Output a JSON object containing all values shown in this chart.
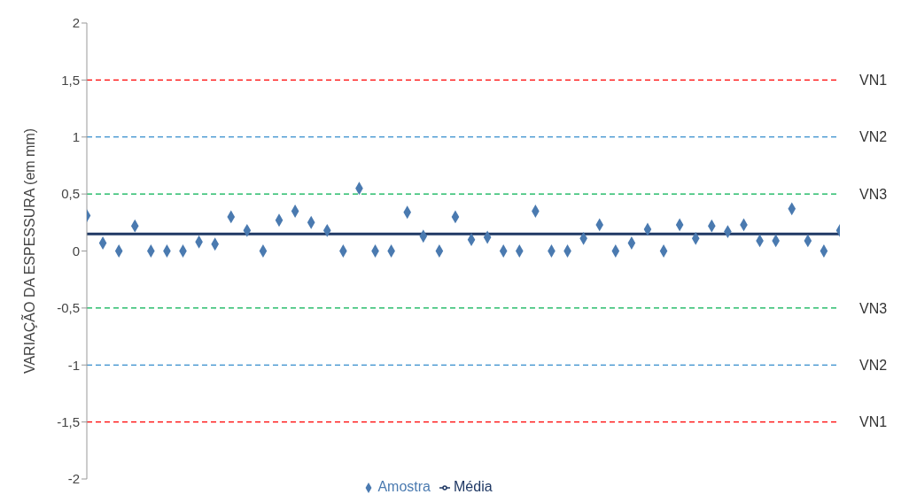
{
  "chart_data": {
    "type": "scatter",
    "ylabel": "VARIAÇÃO DA ESPESSURA (em mm)",
    "categories": [
      null,
      null,
      null,
      null,
      null,
      null,
      null,
      null,
      null,
      null,
      null,
      null,
      null,
      null,
      null,
      null,
      null,
      null,
      null,
      null,
      null,
      null,
      null,
      null,
      null,
      null,
      null,
      null,
      null,
      null,
      null,
      null,
      null,
      null,
      null,
      null,
      null,
      null,
      null,
      null,
      null,
      null,
      null,
      null,
      null,
      null,
      null,
      null
    ],
    "series": [
      {
        "name": "Amostra",
        "color": "#4a7ab0",
        "marker": "diamond",
        "values": [
          0.31,
          0.07,
          0,
          0.22,
          0,
          0,
          0,
          0.08,
          0.06,
          0.3,
          0.18,
          0,
          0.27,
          0.35,
          0.25,
          0.18,
          0,
          0.55,
          0,
          0,
          0.34,
          0.13,
          0,
          0.3,
          0.1,
          0.12,
          0,
          0,
          0.35,
          0,
          0,
          0.11,
          0.23,
          0,
          0.07,
          0.19,
          0,
          0.23,
          0.11,
          0.22,
          0.17,
          0.23,
          0.09,
          0.09,
          0.37,
          0.09,
          0,
          0.18
        ]
      },
      {
        "name": "Média",
        "type": "line",
        "color": "#1f3864",
        "marker": "none",
        "values": [
          0.15,
          0.15,
          0.15,
          0.15,
          0.15,
          0.15,
          0.15,
          0.15,
          0.15,
          0.15,
          0.15,
          0.15,
          0.15,
          0.15,
          0.15,
          0.15,
          0.15,
          0.15,
          0.15,
          0.15,
          0.15,
          0.15,
          0.15,
          0.15,
          0.15,
          0.15,
          0.15,
          0.15,
          0.15,
          0.15,
          0.15,
          0.15,
          0.15,
          0.15,
          0.15,
          0.15,
          0.15,
          0.15,
          0.15,
          0.15,
          0.15,
          0.15,
          0.15,
          0.15,
          0.15,
          0.15,
          0.15,
          0.15
        ]
      }
    ],
    "ylim": [
      -2,
      2
    ],
    "yticks": [
      {
        "value": -2,
        "label": "-2"
      },
      {
        "value": -1.5,
        "label": "-1,5"
      },
      {
        "value": -1,
        "label": "-1"
      },
      {
        "value": -0.5,
        "label": "-0,5"
      },
      {
        "value": 0,
        "label": "0"
      },
      {
        "value": 0.5,
        "label": "0,5"
      },
      {
        "value": 1,
        "label": "1"
      },
      {
        "value": 1.5,
        "label": "1,5"
      },
      {
        "value": 2,
        "label": "2"
      }
    ],
    "ref_lines": [
      {
        "axis": "y",
        "value": 1.5,
        "label": "VN1",
        "color": "#ff0000",
        "line_style": "dashed"
      },
      {
        "axis": "y",
        "value": 1,
        "label": "VN2",
        "color": "#0070c0",
        "line_style": "dashed"
      },
      {
        "axis": "y",
        "value": 0.5,
        "label": "VN3",
        "color": "#00b050",
        "line_style": "dashed"
      },
      {
        "axis": "y",
        "value": -0.5,
        "label": "VN3",
        "color": "#00b050",
        "line_style": "dashed"
      },
      {
        "axis": "y",
        "value": -1,
        "label": "VN2",
        "color": "#0070c0",
        "line_style": "dashed"
      },
      {
        "axis": "y",
        "value": -1.5,
        "label": "VN1",
        "color": "#ff0000",
        "line_style": "dashed"
      }
    ],
    "legend": "bottom",
    "tick_labels": "y"
  }
}
